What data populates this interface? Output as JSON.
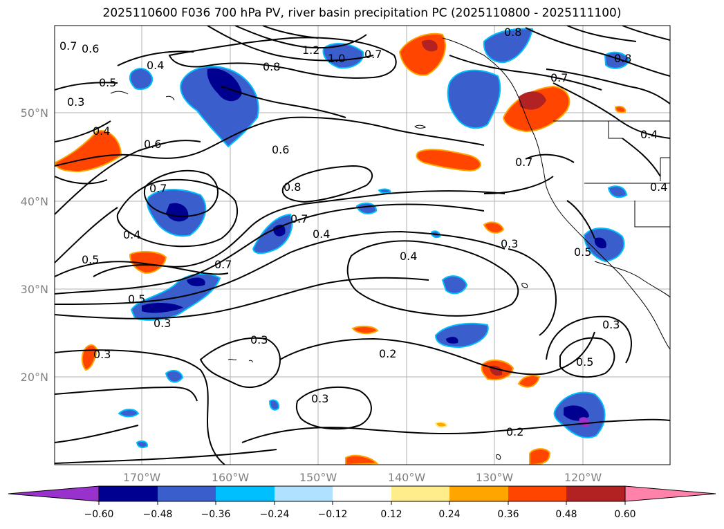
{
  "title": "2025110600 F036 700 hPa PV, river basin precipitation PC (2025110800 - 2025111100)",
  "map": {
    "lon_labels": [
      "170°W",
      "160°W",
      "150°W",
      "140°W",
      "130°W",
      "120°W"
    ],
    "lat_labels": [
      "50°N",
      "40°N",
      "30°N",
      "20°N"
    ],
    "contour_labels": [
      "0.7",
      "0.6",
      "0.4",
      "0.5",
      "0.3",
      "1.2",
      "1.0",
      "0.7",
      "0.8",
      "0.8",
      "0.7",
      "0.8",
      "0.4",
      "0.4",
      "0.6",
      "0.6",
      "0.7",
      "0.8",
      "0.7",
      "0.4",
      "0.5",
      "0.4",
      "0.7",
      "0.4",
      "0.5",
      "0.3",
      "0.3",
      "0.3",
      "0.2",
      "0.3",
      "0.3",
      "0.4",
      "0.5",
      "0.2",
      "0.5",
      "0.7",
      "0.3"
    ],
    "colors": {
      "neg_strong": "#000090",
      "neg_mid": "#3a5fcd",
      "neg_light": "#00bfff",
      "neg_pale": "#b0e2ff",
      "pos_pale": "#ffec8b",
      "pos_light": "#ffa500",
      "pos_mid": "#ff4500",
      "pos_strong": "#b22222",
      "pos_extreme": "#ff82ab",
      "neg_extreme": "#9932cc"
    }
  },
  "colorbar": {
    "tick_labels": [
      "−0.60",
      "−0.48",
      "−0.36",
      "−0.24",
      "−0.12",
      "0.12",
      "0.24",
      "0.36",
      "0.48",
      "0.60"
    ],
    "colors": [
      "#9932cc",
      "#000090",
      "#3a5fcd",
      "#3a5fcd",
      "#00bfff",
      "#b0e2ff",
      "#ffffff",
      "#ffec8b",
      "#ffa500",
      "#ff4500",
      "#b22222",
      "#ff82ab"
    ]
  }
}
